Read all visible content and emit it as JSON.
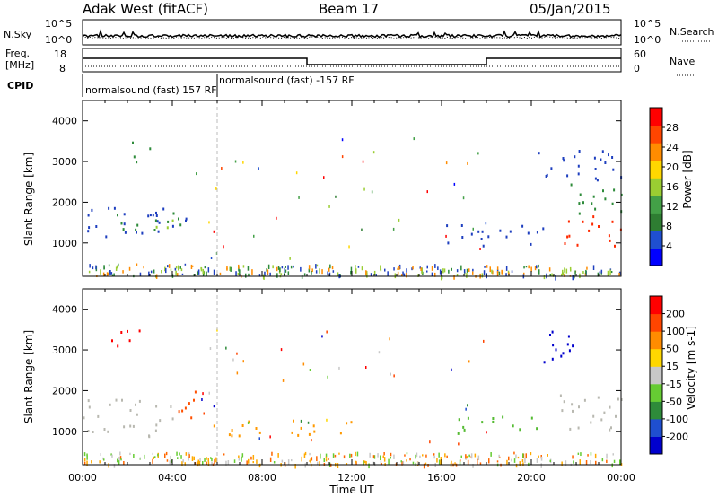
{
  "header": {
    "station": "Adak West (fitACF)",
    "beam": "Beam 17",
    "date": "05/Jan/2015"
  },
  "top_panels": {
    "nsky_label": "N.Sky",
    "nsearch_label": "N.Search",
    "nsky_ticks": [
      "10^5",
      "10^0"
    ],
    "nsearch_ticks": [
      "10^5",
      "10^0"
    ],
    "freq_label_line1": "Freq.",
    "freq_label_line2": "[MHz]",
    "freq_ticks": [
      "18",
      "8"
    ],
    "nave_label": "Nave",
    "nave_ticks": [
      "60",
      "0"
    ],
    "cpid_label": "CPID",
    "cpid_segments": [
      {
        "text": "normalsound (fast) 157 RF",
        "start_hour": 0,
        "end_hour": 6
      },
      {
        "text": "normalsound (fast) -157 RF",
        "start_hour": 6,
        "end_hour": 24
      }
    ]
  },
  "chart_data": [
    {
      "type": "heatmap",
      "name": "power",
      "ylabel": "Slant Range [km]",
      "ylim": [
        180,
        4500
      ],
      "y_ticks": [
        "1000",
        "2000",
        "3000",
        "4000"
      ],
      "xlim": [
        0,
        24
      ],
      "colorbar_label": "Power [dB]",
      "colorbar_ticks": [
        "28",
        "24",
        "20",
        "16",
        "12",
        "8",
        "4"
      ],
      "colorbar_colors": [
        "#0000ff",
        "#1f4fd0",
        "#2e7d32",
        "#43a047",
        "#9acd32",
        "#ffd700",
        "#ff8c00",
        "#ff4500",
        "#ff0000"
      ],
      "clusters": [
        {
          "t0": 0.0,
          "t1": 4.6,
          "r0": 1150,
          "r1": 1900,
          "color": "#1e3fbf"
        },
        {
          "t0": 1.5,
          "t1": 4.5,
          "r0": 1300,
          "r1": 1800,
          "color": "#2e8b3a"
        },
        {
          "t0": 2.5,
          "t1": 4.0,
          "r0": 1400,
          "r1": 1650,
          "color": "#9acd32"
        },
        {
          "t0": 1.8,
          "t1": 3.0,
          "r0": 3000,
          "r1": 3500,
          "color": "#2e8b3a"
        },
        {
          "t0": 16.0,
          "t1": 20.5,
          "r0": 950,
          "r1": 1500,
          "color": "#1e3fbf"
        },
        {
          "t0": 21.2,
          "t1": 24.0,
          "r0": 950,
          "r1": 1700,
          "color": "#ff2a00"
        },
        {
          "t0": 21.5,
          "t1": 24.0,
          "r0": 1700,
          "r1": 2500,
          "color": "#2e8b3a"
        },
        {
          "t0": 20.2,
          "t1": 24.0,
          "r0": 2500,
          "r1": 3300,
          "color": "#1e3fbf"
        }
      ]
    },
    {
      "type": "heatmap",
      "name": "velocity",
      "ylabel": "Slant Range [km]",
      "ylim": [
        180,
        4500
      ],
      "y_ticks": [
        "1000",
        "2000",
        "3000",
        "4000"
      ],
      "xlabel": "Time UT",
      "xlim": [
        0,
        24
      ],
      "x_ticks": [
        "00:00",
        "04:00",
        "08:00",
        "12:00",
        "16:00",
        "20:00",
        "00:00"
      ],
      "colorbar_label": "Velocity [m s-1]",
      "colorbar_ticks": [
        "200",
        "100",
        "50",
        "15",
        "-15",
        "-50",
        "-100",
        "-200"
      ],
      "colorbar_colors": [
        "#0000cd",
        "#1f4fd0",
        "#2e8b3a",
        "#66cc33",
        "#c8c8c8",
        "#ffd700",
        "#ff8c00",
        "#ff4500",
        "#ff0000"
      ],
      "clusters": [
        {
          "t0": 0.0,
          "t1": 4.0,
          "r0": 900,
          "r1": 1800,
          "color": "#b8b8b0"
        },
        {
          "t0": 3.8,
          "t1": 5.0,
          "r0": 1300,
          "r1": 2100,
          "color": "#ff5000"
        },
        {
          "t0": 5.5,
          "t1": 12.0,
          "r0": 900,
          "r1": 1300,
          "color": "#ff9900"
        },
        {
          "t0": 16.5,
          "t1": 20.5,
          "r0": 950,
          "r1": 1400,
          "color": "#55bb33"
        },
        {
          "t0": 21.2,
          "t1": 24.0,
          "r0": 1000,
          "r1": 2000,
          "color": "#b8b8b0"
        },
        {
          "t0": 1.2,
          "t1": 2.8,
          "r0": 3000,
          "r1": 3500,
          "color": "#ff0000"
        },
        {
          "t0": 20.5,
          "t1": 22.0,
          "r0": 2400,
          "r1": 3500,
          "color": "#0000cd"
        }
      ]
    }
  ]
}
